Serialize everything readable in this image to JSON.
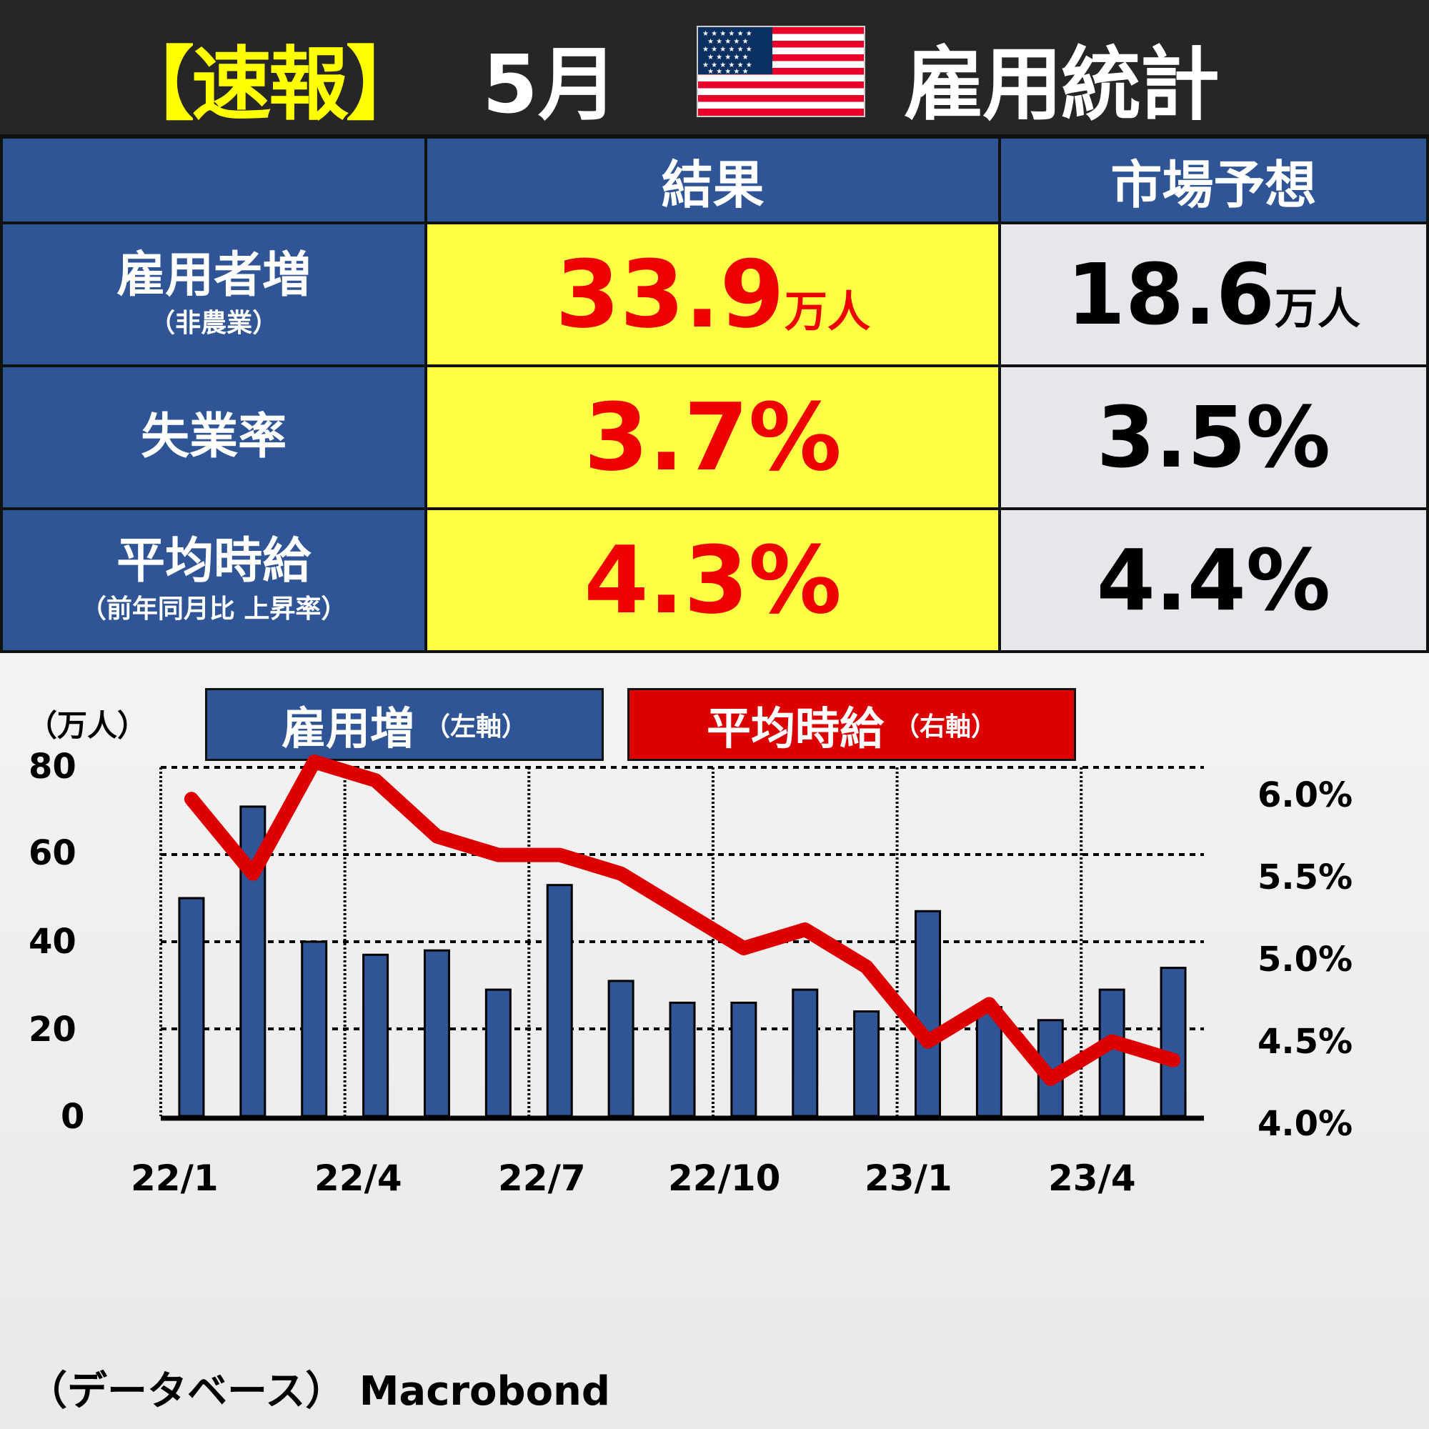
{
  "header": {
    "badge": "【速報】",
    "month": "5月",
    "flag": "us-flag-icon",
    "title": "雇用統計"
  },
  "table": {
    "columns": [
      "",
      "結果",
      "市場予想"
    ],
    "rows": [
      {
        "label": "雇用者増",
        "sublabel": "（非農業）",
        "result": "33.9",
        "result_unit": "万人",
        "forecast": "18.6",
        "forecast_unit": "万人"
      },
      {
        "label": "失業率",
        "sublabel": "",
        "result": "3.7%",
        "result_unit": "",
        "forecast": "3.5%",
        "forecast_unit": ""
      },
      {
        "label": "平均時給",
        "sublabel": "（前年同月比 上昇率）",
        "result": "4.3%",
        "result_unit": "",
        "forecast": "4.4%",
        "forecast_unit": ""
      }
    ],
    "colors": {
      "header_bg": "#2f5597",
      "result_bg": "#ffff44",
      "forecast_bg": "#e6e7ec",
      "result_text": "#ee0000"
    }
  },
  "chart": {
    "left_unit": "（万人）",
    "legend": [
      {
        "label": "雇用増",
        "sub": "（左軸）",
        "color": "#2f5597"
      },
      {
        "label": "平均時給",
        "sub": "（右軸）",
        "color": "#dd0000"
      }
    ],
    "left_ticks": [
      "80",
      "60",
      "40",
      "20",
      "0"
    ],
    "right_ticks": [
      "6.0%",
      "5.5%",
      "5.0%",
      "4.5%",
      "4.0%"
    ],
    "x_ticks": [
      "22/1",
      "22/4",
      "22/7",
      "22/10",
      "23/1",
      "23/4"
    ],
    "source": "（データベース） Macrobond"
  },
  "chart_data": {
    "type": "bar",
    "title": "雇用統計",
    "xlabel": "",
    "ylabel": "万人",
    "y2label": "平均時給 前年同月比 (%)",
    "categories": [
      "22/1",
      "22/2",
      "22/3",
      "22/4",
      "22/5",
      "22/6",
      "22/7",
      "22/8",
      "22/9",
      "22/10",
      "22/11",
      "22/12",
      "23/1",
      "23/2",
      "23/3",
      "23/4",
      "23/5"
    ],
    "series": [
      {
        "name": "雇用増（左軸）",
        "type": "bar",
        "axis": "left",
        "color": "#2f5597",
        "values": [
          50,
          71,
          40,
          37,
          38,
          29,
          53,
          31,
          26,
          26,
          29,
          24,
          47,
          25,
          22,
          29,
          34
        ]
      },
      {
        "name": "平均時給（右軸）",
        "type": "line",
        "axis": "right",
        "color": "#dd0000",
        "values": [
          5.7,
          5.3,
          5.9,
          5.8,
          5.5,
          5.4,
          5.4,
          5.3,
          5.1,
          4.9,
          5.0,
          4.8,
          4.4,
          4.6,
          4.2,
          4.4,
          4.3
        ]
      }
    ],
    "ylim": [
      0,
      80
    ],
    "y2lim": [
      4.0,
      6.0
    ],
    "grid": true,
    "legend_position": "top"
  }
}
